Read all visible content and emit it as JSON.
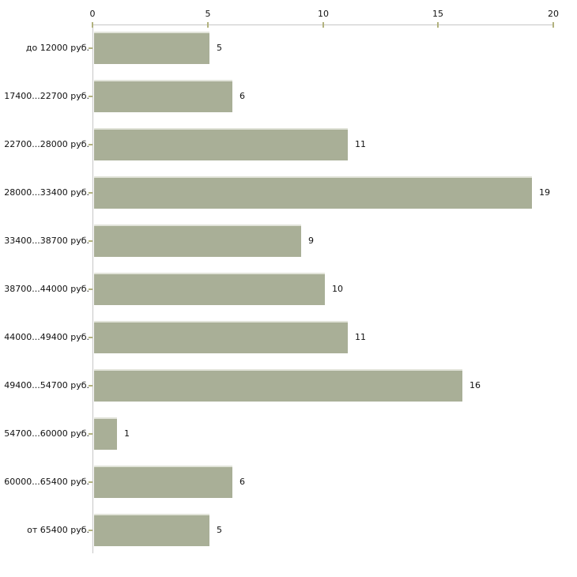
{
  "chart_data": {
    "type": "bar",
    "orientation": "horizontal",
    "title": "",
    "xlabel": "",
    "ylabel": "",
    "categories": [
      "до 12000 руб.",
      "17400...22700 руб.",
      "22700...28000 руб.",
      "28000...33400 руб.",
      "33400...38700 руб.",
      "38700...44000 руб.",
      "44000...49400 руб.",
      "49400...54700 руб.",
      "54700...60000 руб.",
      "60000...65400 руб.",
      "от 65400 руб."
    ],
    "values": [
      5,
      6,
      11,
      19,
      9,
      10,
      11,
      16,
      1,
      6,
      5
    ],
    "x_ticks": [
      0,
      5,
      10,
      15,
      20
    ],
    "xlim": [
      0,
      20
    ],
    "grid": false,
    "legend": false,
    "value_labels_shown": true,
    "colors": {
      "bar_fill": "#a9af97",
      "bar_top_edge": "#e2e4da",
      "axis_line": "#c6c6c6",
      "tick_mark": "#b2b27e",
      "text": "#111111",
      "background": "#ffffff"
    }
  }
}
